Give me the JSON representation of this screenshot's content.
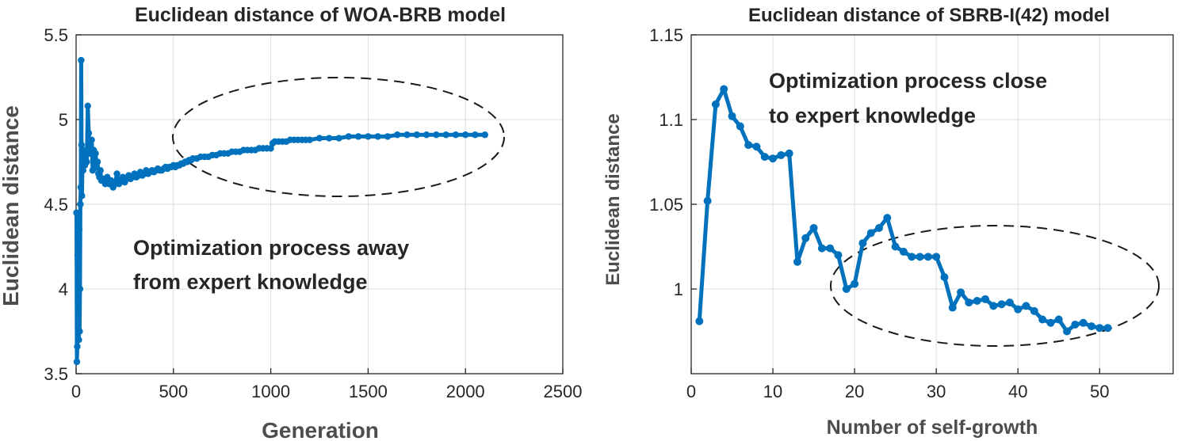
{
  "chart_data": [
    {
      "type": "line",
      "title": "Euclidean distance of WOA-BRB model",
      "xlabel": "Generation",
      "ylabel": "Euclidean distance",
      "xlim": [
        0,
        2500
      ],
      "ylim": [
        3.5,
        5.5
      ],
      "xticks": [
        0,
        500,
        1000,
        1500,
        2000,
        2500
      ],
      "xtick_labels": [
        "0",
        "500",
        "1000",
        "1500",
        "2000",
        "2500"
      ],
      "yticks": [
        3.5,
        4,
        4.5,
        5,
        5.5
      ],
      "ytick_labels": [
        "3.5",
        "4",
        "4.5",
        "5",
        "5.5"
      ],
      "grid": true,
      "series_color": "#0072bd",
      "series": [
        {
          "name": "WOA-BRB",
          "x": [
            2,
            4,
            6,
            8,
            10,
            12,
            14,
            16,
            18,
            20,
            22,
            24,
            26,
            28,
            30,
            33,
            36,
            40,
            45,
            50,
            55,
            60,
            65,
            70,
            75,
            80,
            85,
            90,
            95,
            100,
            105,
            110,
            115,
            120,
            125,
            130,
            140,
            150,
            160,
            170,
            180,
            190,
            200,
            210,
            220,
            230,
            240,
            250,
            260,
            270,
            280,
            290,
            300,
            310,
            320,
            330,
            340,
            350,
            360,
            370,
            380,
            390,
            400,
            410,
            420,
            430,
            440,
            450,
            460,
            470,
            480,
            490,
            500,
            510,
            520,
            530,
            540,
            550,
            560,
            570,
            580,
            590,
            600,
            620,
            640,
            660,
            680,
            700,
            720,
            740,
            760,
            780,
            800,
            820,
            840,
            860,
            880,
            900,
            920,
            940,
            960,
            980,
            1000,
            1010,
            1020,
            1040,
            1060,
            1080,
            1100,
            1120,
            1140,
            1160,
            1180,
            1200,
            1250,
            1300,
            1350,
            1400,
            1450,
            1500,
            1550,
            1600,
            1650,
            1700,
            1750,
            1800,
            1850,
            1900,
            1950,
            2000,
            2050,
            2100
          ],
          "y": [
            4.45,
            3.57,
            3.66,
            4.2,
            3.95,
            4.25,
            3.7,
            4.35,
            3.75,
            4.0,
            4.5,
            4.6,
            5.35,
            4.85,
            4.55,
            4.75,
            4.7,
            4.8,
            4.73,
            4.82,
            4.75,
            5.08,
            4.92,
            4.8,
            4.85,
            4.88,
            4.7,
            4.82,
            4.76,
            4.8,
            4.72,
            4.75,
            4.68,
            4.66,
            4.7,
            4.64,
            4.65,
            4.62,
            4.66,
            4.62,
            4.64,
            4.6,
            4.62,
            4.68,
            4.62,
            4.64,
            4.66,
            4.63,
            4.65,
            4.67,
            4.65,
            4.66,
            4.68,
            4.66,
            4.67,
            4.69,
            4.67,
            4.68,
            4.7,
            4.68,
            4.69,
            4.7,
            4.69,
            4.7,
            4.71,
            4.7,
            4.7,
            4.71,
            4.72,
            4.71,
            4.72,
            4.72,
            4.73,
            4.72,
            4.73,
            4.73,
            4.74,
            4.74,
            4.75,
            4.75,
            4.76,
            4.76,
            4.77,
            4.77,
            4.78,
            4.78,
            4.78,
            4.79,
            4.79,
            4.8,
            4.8,
            4.8,
            4.81,
            4.81,
            4.81,
            4.82,
            4.82,
            4.82,
            4.82,
            4.83,
            4.83,
            4.83,
            4.83,
            4.86,
            4.87,
            4.87,
            4.87,
            4.87,
            4.88,
            4.88,
            4.88,
            4.88,
            4.88,
            4.88,
            4.89,
            4.89,
            4.89,
            4.9,
            4.9,
            4.9,
            4.9,
            4.9,
            4.91,
            4.91,
            4.91,
            4.91,
            4.91,
            4.91,
            4.91,
            4.91,
            4.91,
            4.91
          ]
        }
      ],
      "annotation": [
        "Optimization process away",
        "from expert knowledge"
      ]
    },
    {
      "type": "line",
      "title": "Euclidean distance of SBRB-I(42) model",
      "xlabel": "Number of self-growth",
      "ylabel": "Euclidean distance",
      "xlim": [
        0,
        59
      ],
      "ylim": [
        0.95,
        1.15
      ],
      "xticks": [
        0,
        10,
        20,
        30,
        40,
        50
      ],
      "xtick_labels": [
        "0",
        "10",
        "20",
        "30",
        "40",
        "50"
      ],
      "yticks": [
        1,
        1.05,
        1.1,
        1.15
      ],
      "ytick_labels": [
        "1",
        "1.05",
        "1.1",
        "1.15"
      ],
      "grid": true,
      "series_color": "#0072bd",
      "series": [
        {
          "name": "SBRB-I(42)",
          "x": [
            1,
            2,
            3,
            4,
            5,
            6,
            7,
            8,
            9,
            10,
            11,
            12,
            13,
            14,
            15,
            16,
            17,
            18,
            19,
            20,
            21,
            22,
            23,
            24,
            25,
            26,
            27,
            28,
            29,
            30,
            31,
            32,
            33,
            34,
            35,
            36,
            37,
            38,
            39,
            40,
            41,
            42,
            43,
            44,
            45,
            46,
            47,
            48,
            49,
            50,
            51
          ],
          "y": [
            0.981,
            1.052,
            1.109,
            1.118,
            1.102,
            1.096,
            1.085,
            1.084,
            1.078,
            1.077,
            1.079,
            1.08,
            1.016,
            1.03,
            1.036,
            1.024,
            1.024,
            1.02,
            1.0,
            1.003,
            1.027,
            1.033,
            1.036,
            1.042,
            1.025,
            1.022,
            1.019,
            1.019,
            1.019,
            1.019,
            1.007,
            0.989,
            0.998,
            0.992,
            0.993,
            0.994,
            0.99,
            0.991,
            0.992,
            0.988,
            0.99,
            0.987,
            0.982,
            0.98,
            0.982,
            0.975,
            0.979,
            0.98,
            0.978,
            0.977,
            0.977
          ]
        }
      ],
      "annotation": [
        "Optimization process close",
        "to expert knowledge"
      ]
    }
  ]
}
